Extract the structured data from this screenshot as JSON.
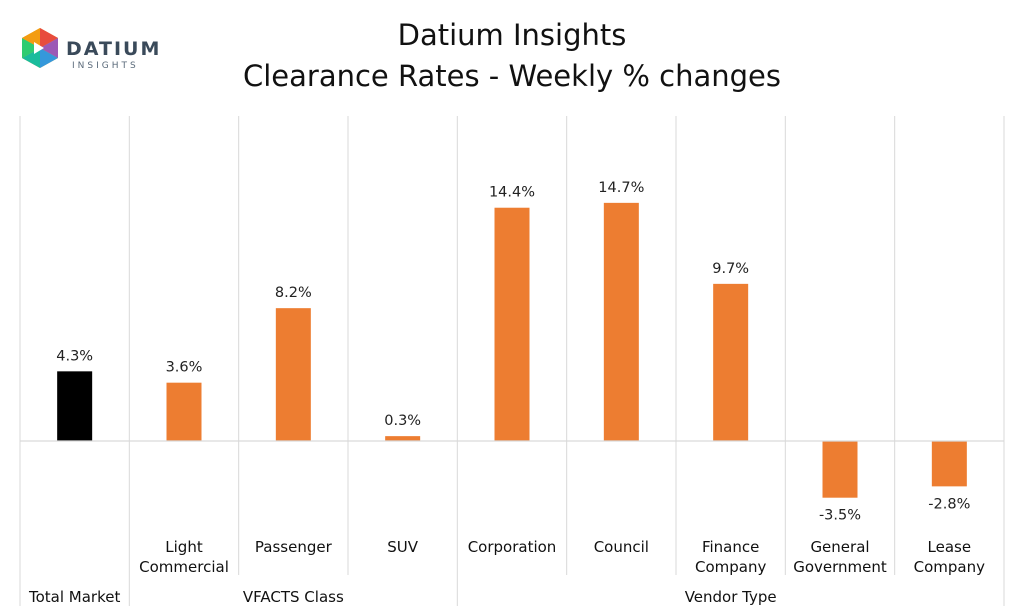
{
  "logo": {
    "brand": "DATIUM",
    "sub": "INSIGHTS"
  },
  "chart_data": {
    "type": "bar",
    "title_lines": [
      "Datium Insights",
      "Clearance Rates - Weekly % changes"
    ],
    "categories": [
      [
        "Total Market"
      ],
      [
        "Light",
        "Commercial"
      ],
      [
        "Passenger"
      ],
      [
        "SUV"
      ],
      [
        "Corporation"
      ],
      [
        "Council"
      ],
      [
        "Finance",
        "Company"
      ],
      [
        "General",
        "Government"
      ],
      [
        "Lease",
        "Company"
      ]
    ],
    "values": [
      4.3,
      3.6,
      8.2,
      0.3,
      14.4,
      14.7,
      9.7,
      -3.5,
      -2.8
    ],
    "data_labels": [
      "4.3%",
      "3.6%",
      "8.2%",
      "0.3%",
      "14.4%",
      "14.7%",
      "9.7%",
      "-3.5%",
      "-2.8%"
    ],
    "bar_colors": [
      "#000000",
      "#ED7D31",
      "#ED7D31",
      "#ED7D31",
      "#ED7D31",
      "#ED7D31",
      "#ED7D31",
      "#ED7D31",
      "#ED7D31"
    ],
    "groups": [
      {
        "label": "",
        "start": 0,
        "end": 0
      },
      {
        "label": "VFACTS Class",
        "start": 1,
        "end": 3
      },
      {
        "label": "Vendor Type",
        "start": 4,
        "end": 8
      }
    ],
    "group_labels_shown": [
      "Total Market",
      "VFACTS Class",
      "Vendor Type"
    ],
    "ylim": [
      -6,
      20
    ],
    "xlabel": "",
    "ylabel": "",
    "legend": "none",
    "grid": false
  }
}
